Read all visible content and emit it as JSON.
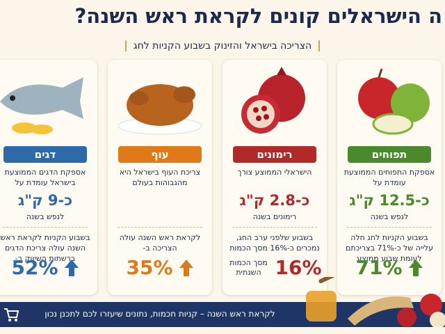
{
  "header": {
    "title": "ה הישראלים קונים לקראת ראש השנה?",
    "subtitle": "הצריכה בישראל והזינוק בשבוע הקניות לחג"
  },
  "cards": [
    {
      "label": "תפוחים",
      "color": "#4b8a2c",
      "description": "אספקת התפוחים הממוצעת עומדת על",
      "amount": "כ-12.5 ק\"ג",
      "amount_note": "לנפש בשנה",
      "week_text": "בשבוע הקניות לחג חלה עלייה של כ-71% בצריכתם לעומת שבוע ממוצע",
      "change": "71%"
    },
    {
      "label": "רימונים",
      "color": "#b12a2a",
      "description": "הישראלי הממוצע צורך",
      "amount": "כ-2.8 ק\"ג",
      "amount_note": "רימונים בשנה",
      "week_text": "בשבוע שלפני ערב החג, נמכרים כ-16% מסך הכמות",
      "change": "16%",
      "change_note": "מסך הכמות השנתית"
    },
    {
      "label": "עוף",
      "color": "#e07a18",
      "description": "צריכת העוף בישראל היא מהגבוהות בעולם",
      "week_text": "לקראת ראש השנה עולה הצריכה ב-",
      "change": "35%"
    },
    {
      "label": "דגים",
      "color": "#2e6aa8",
      "description": "אספקת הדגים הממוצעת בישראל עומדת על",
      "amount": "כ-9 ק\"ג",
      "amount_note": "לנפש בשנה",
      "week_text": "בשבוע הקניות לקראת ראש השנה עולה צריכת הדגים ברשתות השיווק ב-",
      "change": "52%"
    }
  ],
  "footer": {
    "text": "לקראת ראש השנה – קניות חכמות, נתונים שיעזרו לכם לתכנן נכון"
  }
}
